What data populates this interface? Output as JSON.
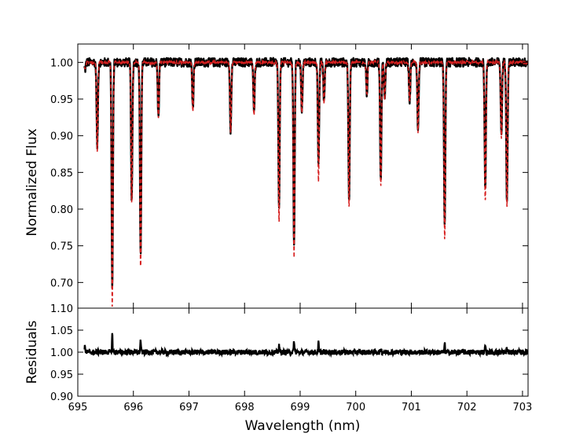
{
  "chart_data": [
    {
      "type": "line",
      "panel": "main",
      "xlabel": "",
      "ylabel": "Normalized Flux",
      "xlim": [
        695.0,
        703.1
      ],
      "ylim": [
        0.665,
        1.025
      ],
      "yticks": [
        "1.00",
        "0.95",
        "0.90",
        "0.85",
        "0.80",
        "0.75",
        "0.70"
      ],
      "ytick_values": [
        1.0,
        0.95,
        0.9,
        0.85,
        0.8,
        0.75,
        0.7
      ],
      "extra_ytick": {
        "label": "1.10",
        "note": "printed at the panel boundary"
      },
      "grid": false,
      "continuum": 1.0,
      "series": [
        {
          "role": "observed",
          "color": "#000000",
          "style": "solid"
        },
        {
          "role": "model",
          "color": "#d62020",
          "style": "dashed"
        }
      ],
      "absorption_lines": [
        {
          "x": 695.13,
          "depth_model": 0.99,
          "depth_obs": 0.99
        },
        {
          "x": 695.35,
          "depth_model": 0.877,
          "depth_obs": 0.885
        },
        {
          "x": 695.62,
          "depth_model": 0.666,
          "depth_obs": 0.69
        },
        {
          "x": 695.97,
          "depth_model": 0.808,
          "depth_obs": 0.81
        },
        {
          "x": 696.13,
          "depth_model": 0.715,
          "depth_obs": 0.736
        },
        {
          "x": 696.45,
          "depth_model": 0.922,
          "depth_obs": 0.925
        },
        {
          "x": 697.07,
          "depth_model": 0.935,
          "depth_obs": 0.94
        },
        {
          "x": 697.75,
          "depth_model": 0.905,
          "depth_obs": 0.907
        },
        {
          "x": 698.17,
          "depth_model": 0.928,
          "depth_obs": 0.93
        },
        {
          "x": 698.62,
          "depth_model": 0.782,
          "depth_obs": 0.797
        },
        {
          "x": 698.89,
          "depth_model": 0.735,
          "depth_obs": 0.752
        },
        {
          "x": 699.03,
          "depth_model": 0.93,
          "depth_obs": 0.932
        },
        {
          "x": 699.33,
          "depth_model": 0.838,
          "depth_obs": 0.856
        },
        {
          "x": 699.43,
          "depth_model": 0.945,
          "depth_obs": 0.947
        },
        {
          "x": 699.88,
          "depth_model": 0.802,
          "depth_obs": 0.806
        },
        {
          "x": 700.2,
          "depth_model": 0.955,
          "depth_obs": 0.957
        },
        {
          "x": 700.45,
          "depth_model": 0.832,
          "depth_obs": 0.838
        },
        {
          "x": 700.52,
          "depth_model": 0.95,
          "depth_obs": 0.952
        },
        {
          "x": 700.97,
          "depth_model": 0.945,
          "depth_obs": 0.947
        },
        {
          "x": 701.12,
          "depth_model": 0.905,
          "depth_obs": 0.908
        },
        {
          "x": 701.6,
          "depth_model": 0.757,
          "depth_obs": 0.776
        },
        {
          "x": 702.33,
          "depth_model": 0.808,
          "depth_obs": 0.825
        },
        {
          "x": 702.62,
          "depth_model": 0.897,
          "depth_obs": 0.902
        },
        {
          "x": 702.72,
          "depth_model": 0.803,
          "depth_obs": 0.81
        }
      ]
    },
    {
      "type": "line",
      "panel": "residuals",
      "xlabel": "Wavelength (nm)",
      "ylabel": "Residuals",
      "xlim": [
        695.0,
        703.1
      ],
      "ylim": [
        0.9,
        1.1
      ],
      "xticks": [
        "695",
        "696",
        "697",
        "698",
        "699",
        "700",
        "701",
        "702",
        "703"
      ],
      "xtick_values": [
        695,
        696,
        697,
        698,
        699,
        700,
        701,
        702,
        703
      ],
      "yticks": [
        "1.05",
        "1.00",
        "0.95",
        "0.90"
      ],
      "ytick_values": [
        1.05,
        1.0,
        0.95,
        0.9
      ],
      "grid": false,
      "baseline": 1.0,
      "series": [
        {
          "role": "residuals",
          "color": "#000000",
          "style": "solid"
        }
      ],
      "spikes": [
        {
          "x": 695.13,
          "y": 1.015
        },
        {
          "x": 695.62,
          "y": 1.042
        },
        {
          "x": 696.13,
          "y": 1.03
        },
        {
          "x": 698.62,
          "y": 1.018
        },
        {
          "x": 698.89,
          "y": 1.028
        },
        {
          "x": 699.33,
          "y": 1.022
        },
        {
          "x": 700.45,
          "y": 1.01
        },
        {
          "x": 701.6,
          "y": 1.02
        },
        {
          "x": 702.33,
          "y": 1.018
        },
        {
          "x": 702.72,
          "y": 1.008
        }
      ]
    }
  ]
}
